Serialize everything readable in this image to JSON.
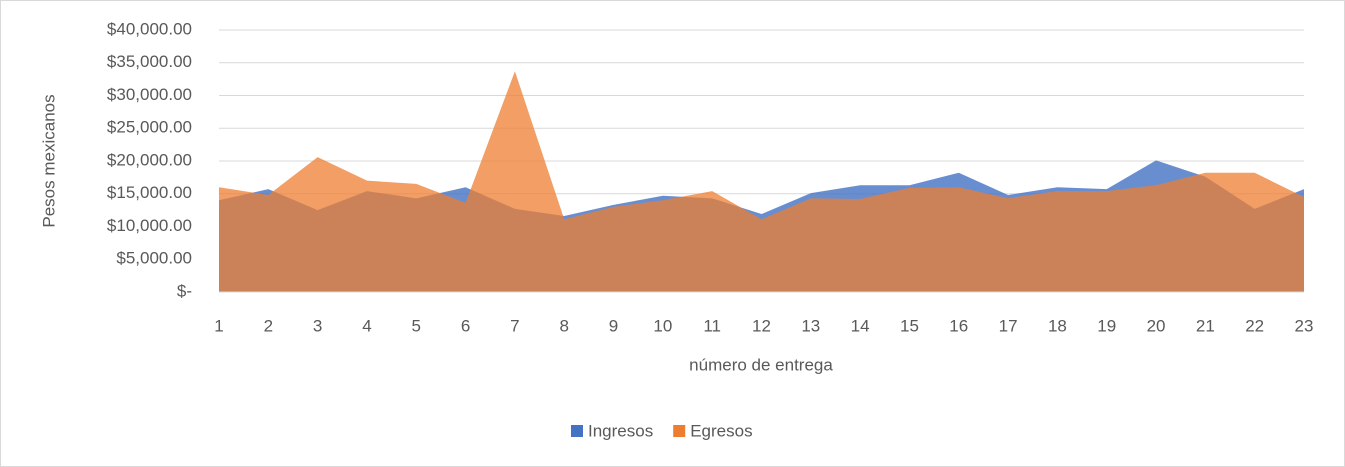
{
  "chart_data": {
    "type": "area",
    "x_label": "número de entrega",
    "y_label": "Pesos mexicanos",
    "categories": [
      "1",
      "2",
      "3",
      "4",
      "5",
      "6",
      "7",
      "8",
      "9",
      "10",
      "11",
      "12",
      "13",
      "14",
      "15",
      "16",
      "17",
      "18",
      "19",
      "20",
      "21",
      "22",
      "23"
    ],
    "series": [
      {
        "name": "Ingresos",
        "color": "#4472c4",
        "values": [
          14000,
          15700,
          12500,
          15400,
          14300,
          16000,
          12700,
          11600,
          13300,
          14700,
          14300,
          11900,
          15100,
          16300,
          16300,
          18200,
          14800,
          16000,
          15700,
          20100,
          17600,
          12700,
          15700
        ]
      },
      {
        "name": "Egresos",
        "color": "#ed7d31",
        "values": [
          16000,
          14800,
          20600,
          17000,
          16500,
          13600,
          33700,
          11100,
          13000,
          14000,
          15400,
          11100,
          14300,
          14200,
          15900,
          16000,
          14300,
          15400,
          15400,
          16300,
          18200,
          18200,
          14500
        ]
      }
    ],
    "ylim": [
      0,
      40000
    ],
    "yticks": [
      {
        "value": 0,
        "label": "$-"
      },
      {
        "value": 5000,
        "label": "$5,000.00"
      },
      {
        "value": 10000,
        "label": "$10,000.00"
      },
      {
        "value": 15000,
        "label": "$15,000.00"
      },
      {
        "value": 20000,
        "label": "$20,000.00"
      },
      {
        "value": 25000,
        "label": "$25,000.00"
      },
      {
        "value": 30000,
        "label": "$30,000.00"
      },
      {
        "value": 35000,
        "label": "$35,000.00"
      },
      {
        "value": 40000,
        "label": "$40,000.00"
      }
    ],
    "grid": true,
    "legend": "bottom"
  }
}
